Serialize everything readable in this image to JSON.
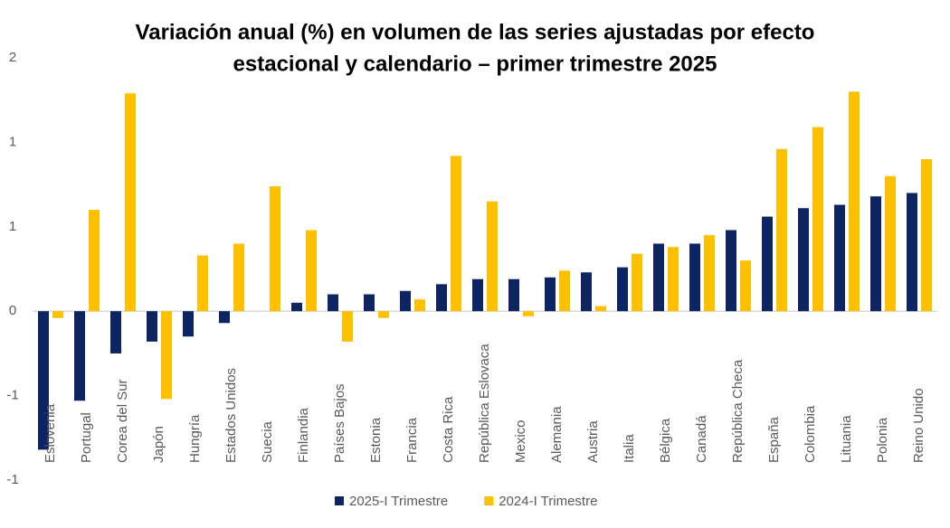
{
  "chart_data": {
    "type": "bar",
    "title": [
      "Variación anual (%) en volumen de las series ajustadas por efecto",
      "estacional y calendario – primer trimestre 2025"
    ],
    "categories": [
      "Eslovenia",
      "Portugal",
      "Corea del Sur",
      "Japón",
      "Hungría",
      "Estados Unidos",
      "Suecia",
      "Finlandia",
      "Países Bajos",
      "Estonia",
      "Francia",
      "Costa Rica",
      "República Eslovaca",
      "Mexico",
      "Alemania",
      "Austria",
      "Italia",
      "Bélgica",
      "Canadá",
      "República Checa",
      "España",
      "Colombia",
      "Lituania",
      "Polonia",
      "Reino Unido"
    ],
    "series": [
      {
        "name": "2025-I Trimestre",
        "color": "#0c2461",
        "values": [
          -0.82,
          -0.53,
          -0.25,
          -0.18,
          -0.15,
          -0.07,
          0,
          0.05,
          0.1,
          0.1,
          0.12,
          0.16,
          0.19,
          0.19,
          0.2,
          0.23,
          0.26,
          0.4,
          0.4,
          0.48,
          0.56,
          0.61,
          0.63,
          0.68,
          0.7
        ]
      },
      {
        "name": "2024-I Trimestre",
        "color": "#ffc000",
        "values": [
          -0.04,
          0.6,
          1.29,
          -0.52,
          0.33,
          0.4,
          0.74,
          0.48,
          -0.18,
          -0.04,
          0.07,
          0.92,
          0.65,
          -0.03,
          0.24,
          0.03,
          0.34,
          0.38,
          0.45,
          0.3,
          0.96,
          1.09,
          1.3,
          0.8,
          0.9
        ]
      }
    ],
    "ylim": [
      -1,
      1.5
    ],
    "yticks": [
      {
        "value": 1.5,
        "label": "2"
      },
      1,
      {
        "value": 0.5,
        "label": "1"
      },
      0,
      {
        "value": -0.5,
        "label": "-1"
      },
      -1
    ],
    "legend": "bottom"
  }
}
